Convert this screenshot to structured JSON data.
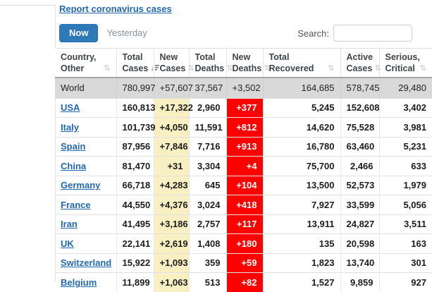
{
  "colors": {
    "accent_blue": "#2e7ab8",
    "link_blue": "#2268ae",
    "highlight_yellow": "#f8efc2",
    "highlight_red": "#ff0000",
    "world_row_gray": "#d9d9d9"
  },
  "icons": {
    "sort_both": "⇅",
    "sort_desc": "↓"
  },
  "top": {
    "report_link": "Report coronavirus cases"
  },
  "controls": {
    "now_label": "Now",
    "yesterday_label": "Yesterday",
    "search_label": "Search:",
    "search_value": "",
    "search_placeholder": ""
  },
  "table": {
    "columns": [
      {
        "line1": "Country,",
        "line2": "Other",
        "sort": "none"
      },
      {
        "line1": "Total",
        "line2": "Cases",
        "sort": "desc"
      },
      {
        "line1": "New",
        "line2": "Cases",
        "sort": "none"
      },
      {
        "line1": "Total",
        "line2": "Deaths",
        "sort": "none"
      },
      {
        "line1": "New",
        "line2": "Deaths",
        "sort": "none"
      },
      {
        "line1": "Total",
        "line2": "Recovered",
        "sort": "none"
      },
      {
        "line1": "Active",
        "line2": "Cases",
        "sort": "none"
      },
      {
        "line1": "Serious,",
        "line2": "Critical",
        "sort": "none"
      }
    ],
    "rows": [
      {
        "is_world": true,
        "country": "World",
        "total_cases": "780,997",
        "new_cases": "+57,607",
        "total_deaths": "37,567",
        "new_deaths": "+3,502",
        "total_recovered": "164,685",
        "active_cases": "578,745",
        "serious_critical": "29,480"
      },
      {
        "is_world": false,
        "country": "USA",
        "total_cases": "160,813",
        "new_cases": "+17,322",
        "total_deaths": "2,960",
        "new_deaths": "+377",
        "total_recovered": "5,245",
        "active_cases": "152,608",
        "serious_critical": "3,402"
      },
      {
        "is_world": false,
        "country": "Italy",
        "total_cases": "101,739",
        "new_cases": "+4,050",
        "total_deaths": "11,591",
        "new_deaths": "+812",
        "total_recovered": "14,620",
        "active_cases": "75,528",
        "serious_critical": "3,981"
      },
      {
        "is_world": false,
        "country": "Spain",
        "total_cases": "87,956",
        "new_cases": "+7,846",
        "total_deaths": "7,716",
        "new_deaths": "+913",
        "total_recovered": "16,780",
        "active_cases": "63,460",
        "serious_critical": "5,231"
      },
      {
        "is_world": false,
        "country": "China",
        "total_cases": "81,470",
        "new_cases": "+31",
        "total_deaths": "3,304",
        "new_deaths": "+4",
        "total_recovered": "75,700",
        "active_cases": "2,466",
        "serious_critical": "633"
      },
      {
        "is_world": false,
        "country": "Germany",
        "total_cases": "66,718",
        "new_cases": "+4,283",
        "total_deaths": "645",
        "new_deaths": "+104",
        "total_recovered": "13,500",
        "active_cases": "52,573",
        "serious_critical": "1,979"
      },
      {
        "is_world": false,
        "country": "France",
        "total_cases": "44,550",
        "new_cases": "+4,376",
        "total_deaths": "3,024",
        "new_deaths": "+418",
        "total_recovered": "7,927",
        "active_cases": "33,599",
        "serious_critical": "5,056"
      },
      {
        "is_world": false,
        "country": "Iran",
        "total_cases": "41,495",
        "new_cases": "+3,186",
        "total_deaths": "2,757",
        "new_deaths": "+117",
        "total_recovered": "13,911",
        "active_cases": "24,827",
        "serious_critical": "3,511"
      },
      {
        "is_world": false,
        "country": "UK",
        "total_cases": "22,141",
        "new_cases": "+2,619",
        "total_deaths": "1,408",
        "new_deaths": "+180",
        "total_recovered": "135",
        "active_cases": "20,598",
        "serious_critical": "163"
      },
      {
        "is_world": false,
        "country": "Switzerland",
        "total_cases": "15,922",
        "new_cases": "+1,093",
        "total_deaths": "359",
        "new_deaths": "+59",
        "total_recovered": "1,823",
        "active_cases": "13,740",
        "serious_critical": "301"
      },
      {
        "is_world": false,
        "country": "Belgium",
        "total_cases": "11,899",
        "new_cases": "+1,063",
        "total_deaths": "513",
        "new_deaths": "+82",
        "total_recovered": "1,527",
        "active_cases": "9,859",
        "serious_critical": "927"
      }
    ]
  }
}
